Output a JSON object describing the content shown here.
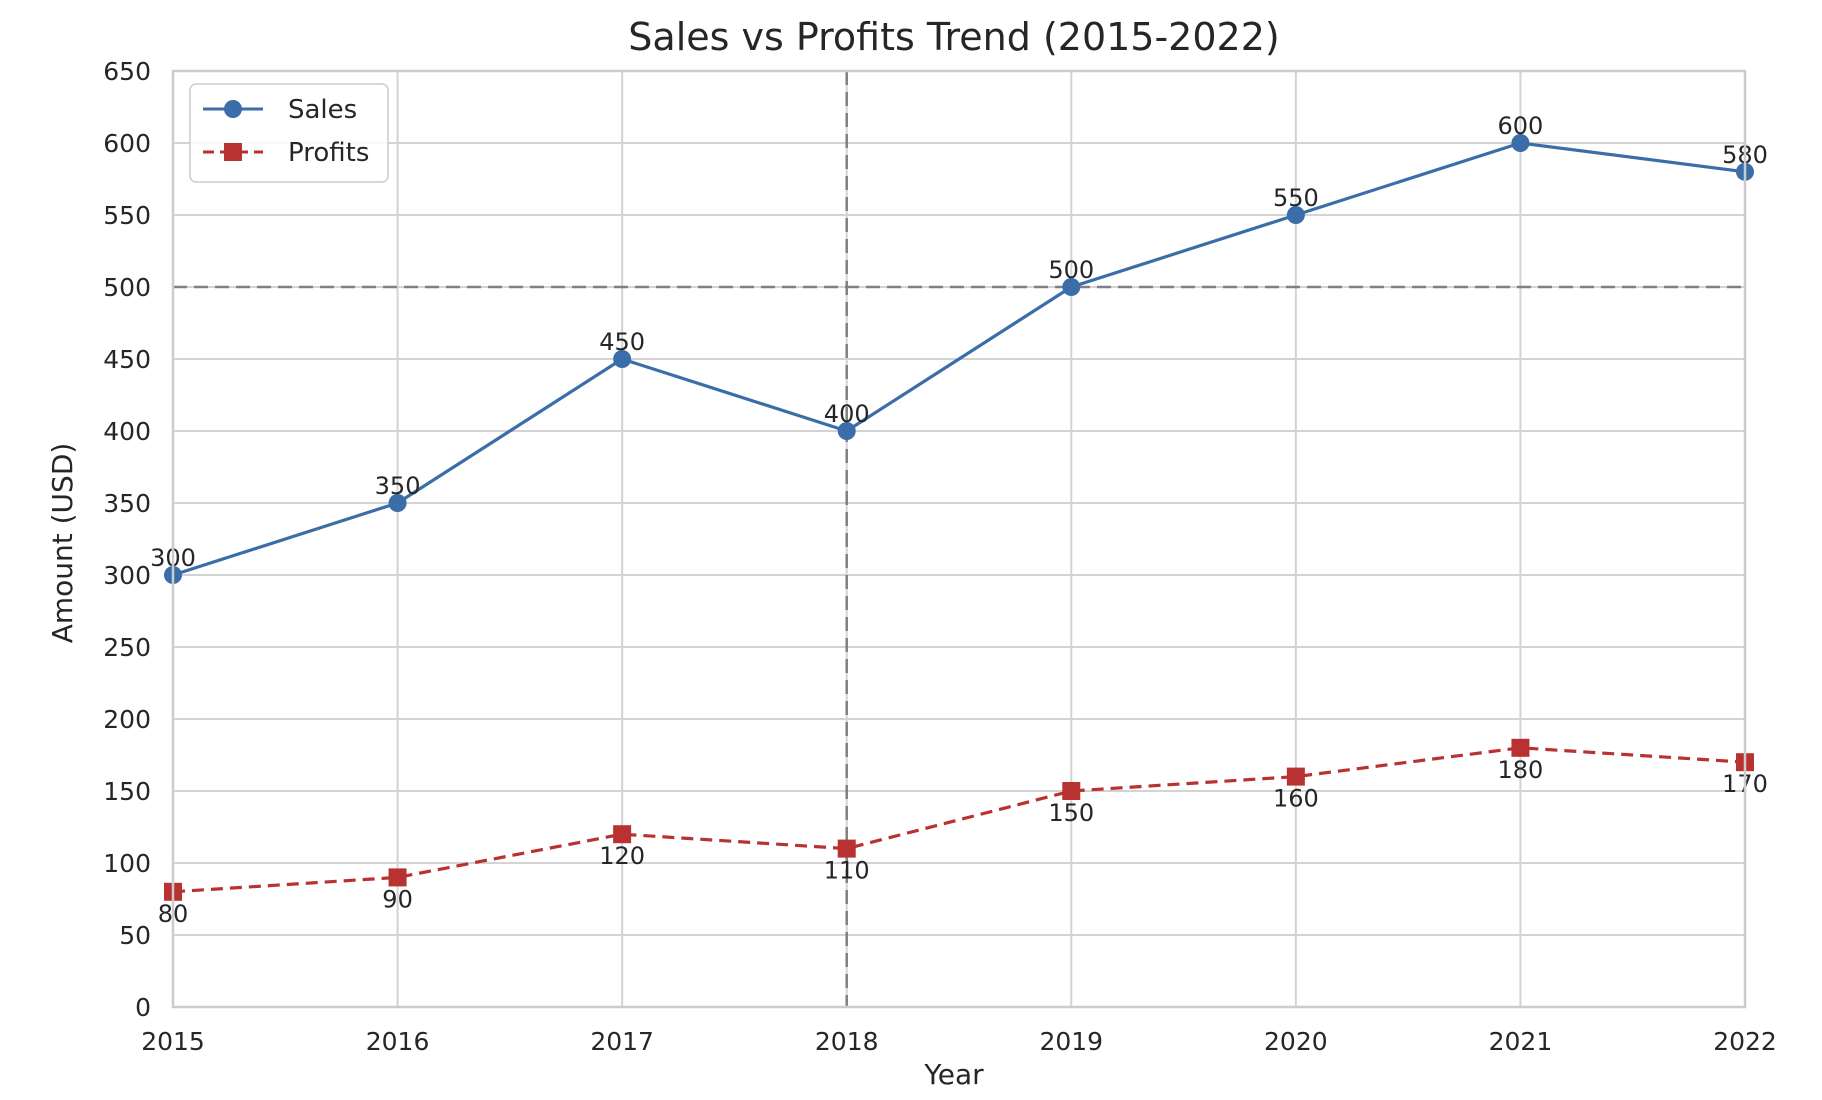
{
  "chart_data": {
    "type": "line",
    "title": "Sales vs Profits Trend (2015-2022)",
    "xlabel": "Year",
    "ylabel": "Amount (USD)",
    "x": [
      2015,
      2016,
      2017,
      2018,
      2019,
      2020,
      2021,
      2022
    ],
    "xlim": [
      2015,
      2022
    ],
    "ylim": [
      0,
      650
    ],
    "yticks": [
      0,
      50,
      100,
      150,
      200,
      250,
      300,
      350,
      400,
      450,
      500,
      550,
      600,
      650
    ],
    "grid": true,
    "legend_position": "top-left",
    "series": [
      {
        "name": "Sales",
        "values": [
          300,
          350,
          450,
          400,
          500,
          550,
          600,
          580
        ],
        "color": "#3b6ea8",
        "line_style": "solid",
        "marker": "circle",
        "label_position": "above"
      },
      {
        "name": "Profits",
        "values": [
          80,
          90,
          120,
          110,
          150,
          160,
          180,
          170
        ],
        "color": "#b83232",
        "line_style": "dashed",
        "marker": "square",
        "label_position": "below"
      }
    ],
    "reference_lines": [
      {
        "axis": "y",
        "value": 500,
        "color": "#808080",
        "style": "dashed"
      },
      {
        "axis": "x",
        "value": 2018,
        "color": "#808080",
        "style": "dashed"
      }
    ]
  }
}
